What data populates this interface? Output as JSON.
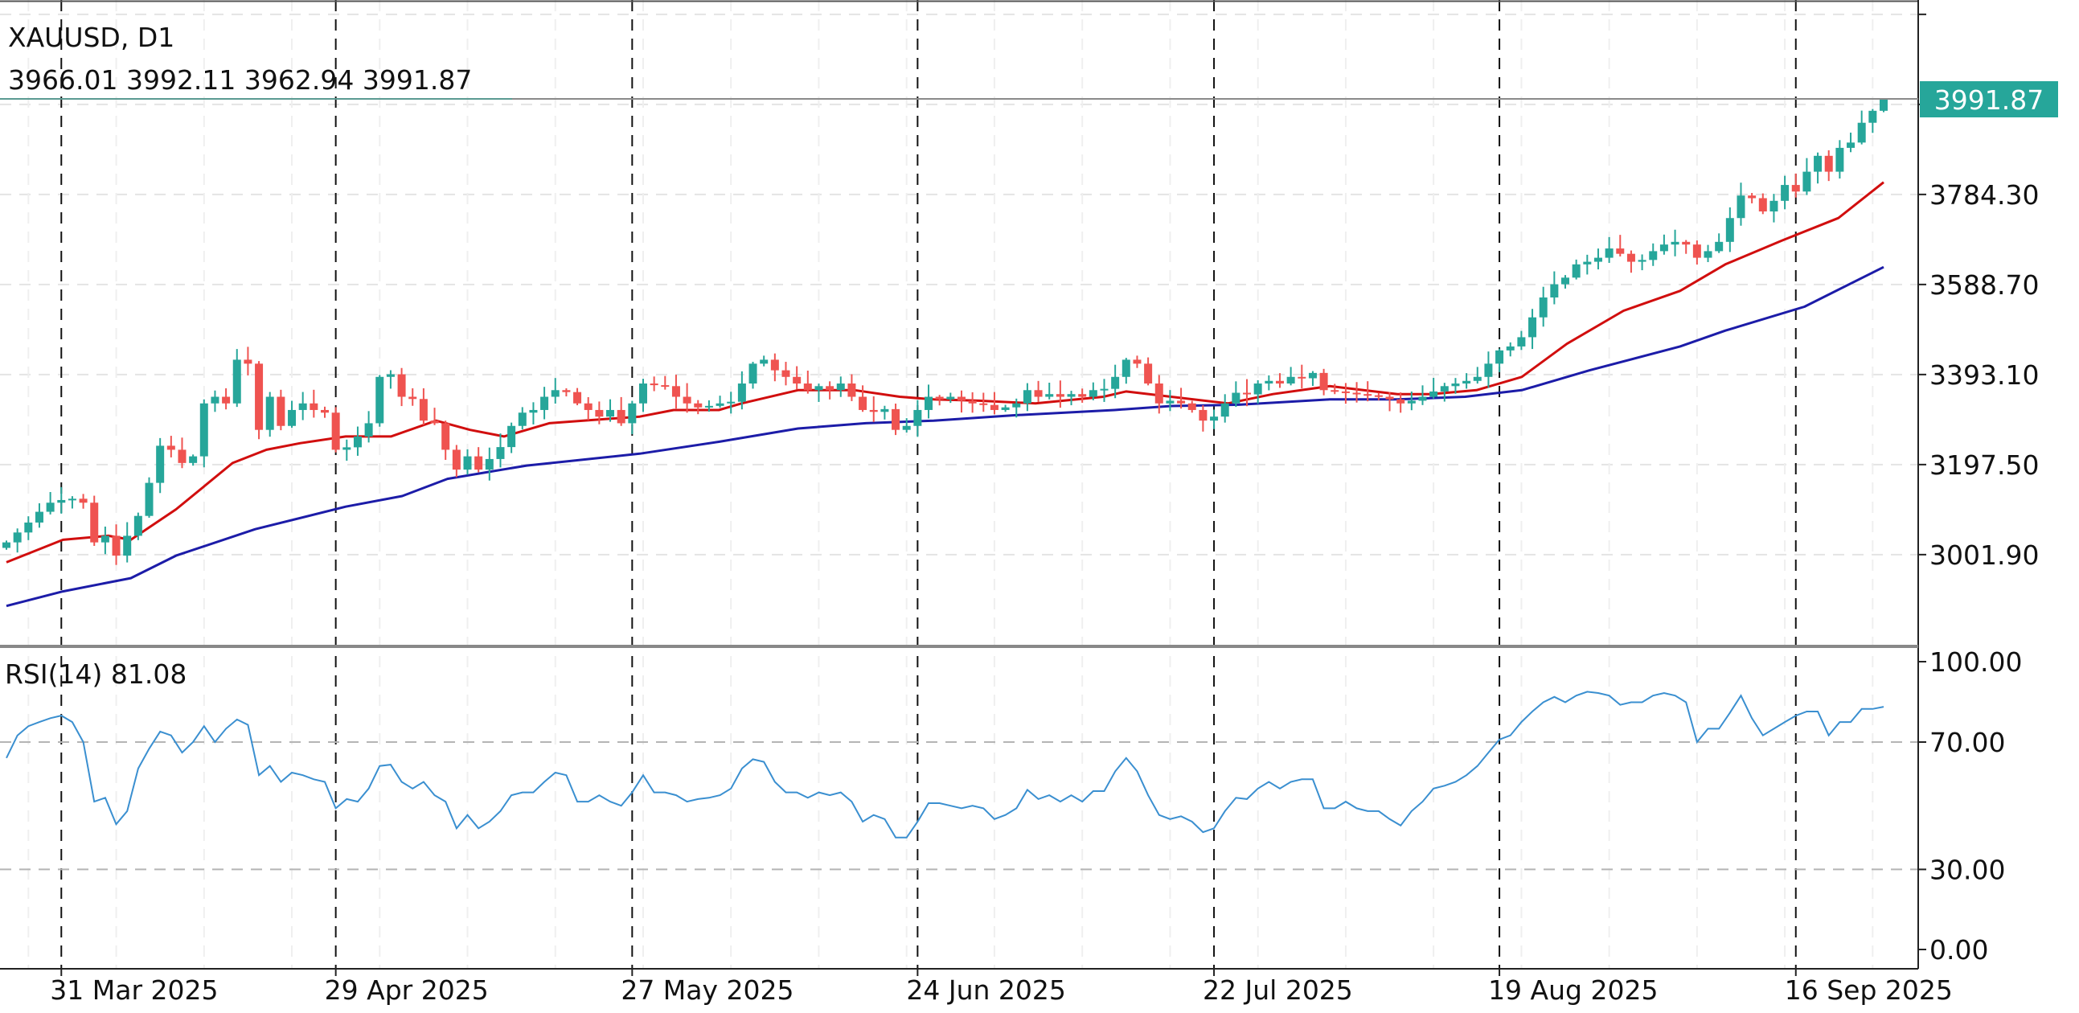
{
  "header": {
    "symbol_timeframe": "XAUUSD, D1",
    "ohlc_text": "3966.01 3992.11 3962.94 3991.87"
  },
  "current_price_label": "3991.87",
  "rsi_label": "RSI(14) 81.08",
  "colors": {
    "bull": "#26a69a",
    "bear": "#ef5350",
    "ma_fast": "#d10e0e",
    "ma_slow": "#1c1ca8",
    "rsi_line": "#3a8fd0",
    "price_badge": "#26a69a"
  },
  "chart_data": [
    {
      "type": "candlestick",
      "symbol": "XAUUSD",
      "timeframe": "D1",
      "ylim": [
        2850,
        4200
      ],
      "grid": true,
      "y_ticks": [
        {
          "value": 3784.3,
          "label": "3784.30"
        },
        {
          "value": 3588.7,
          "label": "3588.70"
        },
        {
          "value": 3393.1,
          "label": "3393.10"
        },
        {
          "value": 3197.5,
          "label": "3197.50"
        },
        {
          "value": 3001.9,
          "label": "3001.90"
        }
      ],
      "x_ticks": [
        {
          "index": 5,
          "label": "31 Mar 2025"
        },
        {
          "index": 30,
          "label": "29 Apr 2025"
        },
        {
          "index": 57,
          "label": "27 May 2025"
        },
        {
          "index": 83,
          "label": "24 Jun 2025"
        },
        {
          "index": 110,
          "label": "22 Jul 2025"
        },
        {
          "index": 136,
          "label": "19 Aug 2025"
        },
        {
          "index": 163,
          "label": "16 Sep 2025"
        }
      ],
      "last_bar": {
        "open": 3966.01,
        "high": 3992.11,
        "low": 3962.94,
        "close": 3991.87
      },
      "closes": [
        3028.5,
        3050,
        3071.6,
        3095,
        3114.7,
        3120.5,
        3123.3,
        3114.7,
        3028.5,
        3042.8,
        2999.7,
        3042.8,
        3086,
        3157.8,
        3238.4,
        3229.7,
        3201,
        3215.4,
        3330.4,
        3344.8,
        3330.4,
        3425.3,
        3416.7,
        3272.9,
        3344.8,
        3281.5,
        3316.1,
        3330.4,
        3316.1,
        3310.3,
        3229.7,
        3235,
        3258.5,
        3287.3,
        3388,
        3393.7,
        3344.8,
        3340,
        3293,
        3287.3,
        3229.7,
        3186.6,
        3215.4,
        3186.6,
        3209.6,
        3235.5,
        3281.5,
        3310.3,
        3316.1,
        3344.8,
        3359.2,
        3355,
        3330.4,
        3316.1,
        3301.7,
        3316.1,
        3287.3,
        3330.4,
        3373.6,
        3370,
        3367.9,
        3344.8,
        3330.4,
        3321.8,
        3325,
        3330.4,
        3334,
        3373.6,
        3416.7,
        3425.3,
        3402.3,
        3388,
        3373.6,
        3359.2,
        3367.9,
        3359.2,
        3373.6,
        3344.8,
        3316.1,
        3312,
        3318,
        3272.9,
        3281.5,
        3316.1,
        3344.8,
        3339.1,
        3344.8,
        3336.2,
        3330.4,
        3327,
        3316.1,
        3321.8,
        3330.4,
        3359.2,
        3344.8,
        3350.6,
        3344.8,
        3350.6,
        3344.8,
        3359.2,
        3362,
        3388,
        3425.3,
        3416.7,
        3373.6,
        3330.4,
        3336.2,
        3330.4,
        3316.1,
        3293,
        3301.7,
        3330.4,
        3353.5,
        3350,
        3373.6,
        3379.3,
        3373.6,
        3388,
        3385,
        3396.6,
        3359.2,
        3356.3,
        3353.5,
        3350.6,
        3348,
        3344.8,
        3339.1,
        3330.4,
        3336.2,
        3344.8,
        3356.3,
        3367.9,
        3373.6,
        3379.3,
        3388,
        3416.7,
        3445.5,
        3454.1,
        3474.2,
        3517.3,
        3560.5,
        3589.2,
        3603.6,
        3632.4,
        3638.1,
        3646.8,
        3666.9,
        3655.4,
        3638.1,
        3642,
        3661.1,
        3675.5,
        3681.3,
        3675.5,
        3646.8,
        3661.1,
        3681.3,
        3733,
        3781.9,
        3776.2,
        3747.4,
        3770.4,
        3804.9,
        3790.6,
        3833.7,
        3868.2,
        3833.7,
        3885.5,
        3897,
        3940,
        3966.01,
        3991.87
      ],
      "moving_averages": [
        {
          "color_key": "ma_fast",
          "points": [
            [
              0,
              2985.3
            ],
            [
              5,
              3034.2
            ],
            [
              9,
              3042.8
            ],
            [
              11,
              3034.2
            ],
            [
              15,
              3100.3
            ],
            [
              20,
              3201
            ],
            [
              23,
              3229.7
            ],
            [
              26,
              3244.1
            ],
            [
              30,
              3258.5
            ],
            [
              34,
              3258.5
            ],
            [
              38,
              3293
            ],
            [
              41,
              3272.9
            ],
            [
              44,
              3258.5
            ],
            [
              48,
              3287.3
            ],
            [
              51,
              3293
            ],
            [
              56,
              3301.7
            ],
            [
              59,
              3316.1
            ],
            [
              63,
              3316.1
            ],
            [
              65,
              3330.4
            ],
            [
              70,
              3359.2
            ],
            [
              75,
              3359.2
            ],
            [
              79,
              3344.8
            ],
            [
              82,
              3339.1
            ],
            [
              86,
              3336.2
            ],
            [
              91,
              3330.4
            ],
            [
              97,
              3344.8
            ],
            [
              99,
              3356.3
            ],
            [
              103,
              3344.8
            ],
            [
              108,
              3330.4
            ],
            [
              112,
              3350.6
            ],
            [
              117,
              3367.9
            ],
            [
              123,
              3350.6
            ],
            [
              126,
              3350.6
            ],
            [
              130,
              3359.2
            ],
            [
              134,
              3388
            ],
            [
              138,
              3460
            ],
            [
              143,
              3531.7
            ],
            [
              148,
              3574.8
            ],
            [
              152,
              3632.4
            ],
            [
              157,
              3684.1
            ],
            [
              162,
              3733
            ],
            [
              166,
              3810.7
            ]
          ]
        },
        {
          "color_key": "ma_slow",
          "points": [
            [
              0,
              2890.4
            ],
            [
              5,
              2922
            ],
            [
              11,
              2950.8
            ],
            [
              15,
              2999.7
            ],
            [
              22,
              3057.2
            ],
            [
              30,
              3106.1
            ],
            [
              35,
              3129.1
            ],
            [
              39,
              3166.5
            ],
            [
              46,
              3195.3
            ],
            [
              56,
              3221.2
            ],
            [
              63,
              3247
            ],
            [
              70,
              3275.8
            ],
            [
              76,
              3287.3
            ],
            [
              82,
              3293
            ],
            [
              89,
              3304.5
            ],
            [
              98,
              3316.1
            ],
            [
              103,
              3324.7
            ],
            [
              109,
              3327.6
            ],
            [
              117,
              3339.1
            ],
            [
              123,
              3339.1
            ],
            [
              129,
              3344.8
            ],
            [
              134,
              3359.2
            ],
            [
              140,
              3402.3
            ],
            [
              148,
              3454.1
            ],
            [
              152,
              3488.6
            ],
            [
              159,
              3540.4
            ],
            [
              166,
              3626.6
            ]
          ]
        }
      ]
    },
    {
      "type": "line",
      "title": "RSI(14) 81.08",
      "ylim": [
        0,
        100
      ],
      "levels": [
        70,
        30
      ],
      "y_ticks": [
        {
          "value": 100,
          "label": "100.00"
        },
        {
          "value": 70,
          "label": "70.00"
        },
        {
          "value": 30,
          "label": "30.00"
        },
        {
          "value": 0,
          "label": "0.00"
        }
      ],
      "values": [
        65.0,
        72.1,
        75.0,
        76.3,
        77.5,
        78.3,
        76.3,
        70.0,
        51.3,
        52.5,
        44.2,
        48.3,
        61.7,
        67.9,
        73.3,
        72.1,
        66.7,
        70.0,
        75.0,
        70.0,
        74.2,
        77.1,
        75.4,
        59.6,
        62.5,
        57.5,
        60.4,
        59.6,
        58.3,
        57.5,
        49.2,
        52.1,
        51.3,
        55.4,
        62.5,
        62.9,
        57.5,
        55.4,
        57.5,
        53.3,
        51.3,
        42.9,
        47.1,
        42.9,
        45.0,
        48.3,
        53.3,
        54.2,
        54.2,
        57.5,
        60.4,
        59.6,
        51.3,
        51.3,
        53.3,
        51.3,
        50.0,
        54.2,
        59.6,
        54.2,
        54.2,
        53.3,
        51.3,
        52.1,
        52.5,
        53.3,
        55.4,
        61.7,
        64.6,
        63.8,
        57.5,
        54.2,
        54.2,
        52.5,
        54.2,
        53.3,
        54.2,
        51.3,
        45.0,
        47.1,
        45.8,
        40.0,
        40.0,
        45.0,
        50.8,
        50.8,
        50.0,
        49.2,
        50.0,
        49.2,
        45.8,
        47.1,
        49.2,
        55.0,
        52.1,
        53.3,
        51.3,
        53.3,
        51.3,
        54.6,
        54.6,
        60.8,
        65.0,
        60.8,
        53.3,
        47.1,
        45.8,
        46.7,
        45.0,
        41.7,
        42.9,
        48.3,
        52.5,
        52.1,
        55.4,
        57.5,
        55.4,
        57.5,
        58.3,
        58.3,
        49.2,
        49.2,
        51.3,
        49.2,
        48.3,
        48.3,
        45.8,
        43.8,
        48.3,
        51.3,
        55.4,
        56.3,
        57.5,
        59.6,
        62.5,
        66.7,
        70.8,
        72.1,
        76.3,
        79.6,
        82.5,
        84.2,
        82.5,
        84.6,
        85.8,
        85.4,
        84.6,
        81.7,
        82.5,
        82.5,
        84.6,
        85.4,
        84.6,
        82.5,
        70.0,
        74.2,
        74.2,
        79.2,
        84.6,
        77.5,
        72.1,
        74.2,
        76.3,
        78.3,
        79.6,
        79.6,
        72.1,
        76.3,
        76.3,
        80.4,
        80.4,
        81.08
      ]
    }
  ]
}
